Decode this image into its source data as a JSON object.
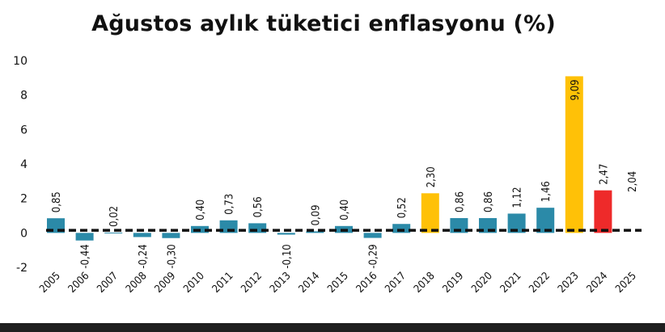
{
  "chart_data": {
    "type": "bar",
    "title": "Ağustos aylık tüketici enflasyonu (%)",
    "xlabel": "",
    "ylabel": "",
    "ylim": [
      -2,
      10
    ],
    "yticks": [
      "-2",
      "0",
      "2",
      "4",
      "6",
      "8",
      "10"
    ],
    "categories": [
      "2005",
      "2006",
      "2007",
      "2008",
      "2009",
      "2010",
      "2011",
      "2012",
      "2013",
      "2014",
      "2015",
      "2016",
      "2017",
      "2018",
      "2019",
      "2020",
      "2021",
      "2022",
      "2023",
      "2024",
      "2025"
    ],
    "values": [
      0.85,
      -0.44,
      0.02,
      -0.24,
      -0.3,
      0.4,
      0.73,
      0.56,
      -0.1,
      0.09,
      0.4,
      -0.29,
      0.52,
      2.3,
      0.86,
      0.86,
      1.12,
      1.46,
      9.09,
      2.47,
      2.04
    ],
    "value_labels": [
      "0,85",
      "-0,44",
      "0,02",
      "-0,24",
      "-0,30",
      "0,40",
      "0,73",
      "0,56",
      "-0,10",
      "0,09",
      "0,40",
      "-0,29",
      "0,52",
      "2,30",
      "0,86",
      "0,86",
      "1,12",
      "1,46",
      "9,09",
      "2,47",
      "2,04"
    ],
    "bar_colors": [
      "#2b8aa8",
      "#2b8aa8",
      "#2b8aa8",
      "#2b8aa8",
      "#2b8aa8",
      "#2b8aa8",
      "#2b8aa8",
      "#2b8aa8",
      "#2b8aa8",
      "#2b8aa8",
      "#2b8aa8",
      "#2b8aa8",
      "#2b8aa8",
      "#ffc107",
      "#2b8aa8",
      "#2b8aa8",
      "#2b8aa8",
      "#2b8aa8",
      "#ffc107",
      "#ee2a2a",
      "#ffffff"
    ],
    "reference_line": {
      "value": 0.15,
      "style": "dashed",
      "color": "#111111"
    },
    "grid": false,
    "legend": "none"
  }
}
